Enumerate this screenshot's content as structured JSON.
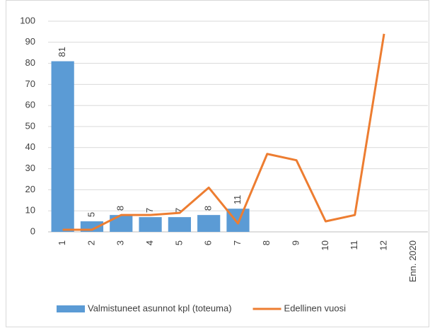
{
  "chart_data": {
    "type": "bar_line",
    "categories": [
      "1",
      "2",
      "3",
      "4",
      "5",
      "6",
      "7",
      "8",
      "9",
      "10",
      "11",
      "12",
      "Enn. 2020"
    ],
    "series": [
      {
        "name": "Valmistuneet asunnot kpl (toteuma)",
        "type": "bar",
        "color": "#5b9bd5",
        "values": [
          81,
          5,
          8,
          7,
          7,
          8,
          11,
          null,
          null,
          null,
          null,
          null,
          null
        ]
      },
      {
        "name": "Edellinen vuosi",
        "type": "line",
        "color": "#ed7d31",
        "values": [
          1,
          1,
          8,
          8,
          9,
          21,
          4,
          37,
          34,
          5,
          8,
          94,
          null
        ]
      }
    ],
    "ylim": [
      0,
      100
    ],
    "yticks": [
      0,
      10,
      20,
      30,
      40,
      50,
      60,
      70,
      80,
      90,
      100
    ],
    "grid": true,
    "legend": "bottom"
  }
}
